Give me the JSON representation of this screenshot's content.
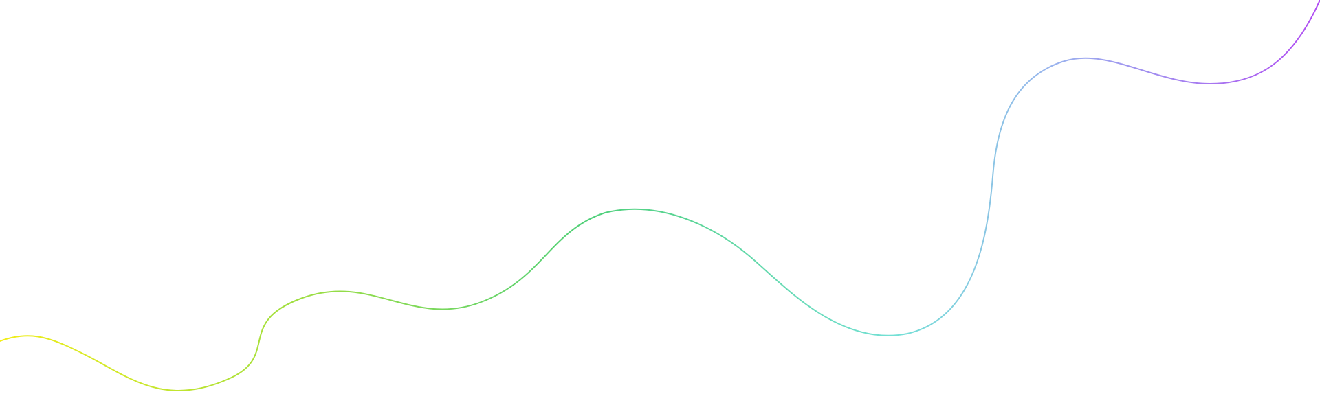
{
  "decoration": {
    "type": "wavy-line",
    "stroke_width": 2,
    "gradient": {
      "direction": "left-to-right",
      "stops": [
        {
          "offset": 0.0,
          "color": "#f2ee1a"
        },
        {
          "offset": 0.2,
          "color": "#a8e03a"
        },
        {
          "offset": 0.45,
          "color": "#4fd07a"
        },
        {
          "offset": 0.68,
          "color": "#74e0d6"
        },
        {
          "offset": 0.8,
          "color": "#9ab2ee"
        },
        {
          "offset": 1.0,
          "color": "#b04cf2"
        }
      ]
    }
  }
}
